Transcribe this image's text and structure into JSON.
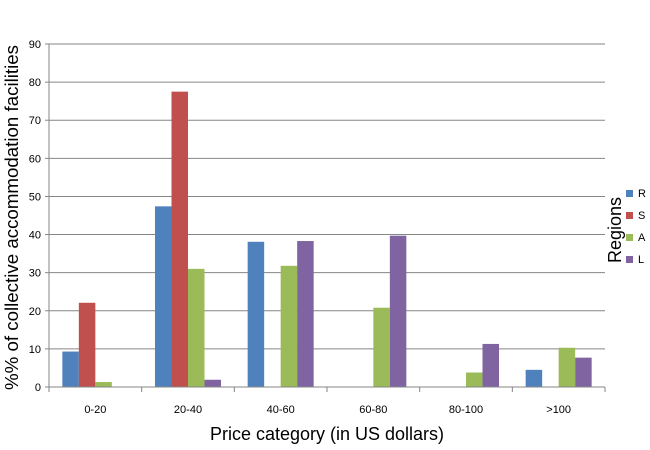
{
  "chart_data": {
    "type": "bar",
    "title": "",
    "xlabel": "Price category (in US dollars)",
    "ylabel": "%% of collective accommodation facilities",
    "legend_title": "Regions",
    "legend_position": "right",
    "ylim": [
      0,
      90
    ],
    "yticks": [
      0,
      10,
      20,
      30,
      40,
      50,
      60,
      70,
      80,
      90
    ],
    "grid": true,
    "categories": [
      "0-20",
      "20-40",
      "40-60",
      "60-80",
      "80-100",
      ">100"
    ],
    "series": [
      {
        "name": "R",
        "color": "#4F81BD",
        "values": [
          9.3,
          47.4,
          38.1,
          0,
          0,
          4.5
        ]
      },
      {
        "name": "S",
        "color": "#C0504D",
        "values": [
          22.1,
          77.5,
          0,
          0,
          0,
          0
        ]
      },
      {
        "name": "A",
        "color": "#9BBB59",
        "values": [
          1.3,
          31.0,
          31.8,
          20.8,
          3.8,
          10.3
        ]
      },
      {
        "name": "L",
        "color": "#8064A2",
        "values": [
          0,
          1.9,
          38.3,
          39.7,
          11.3,
          7.7
        ]
      }
    ]
  }
}
